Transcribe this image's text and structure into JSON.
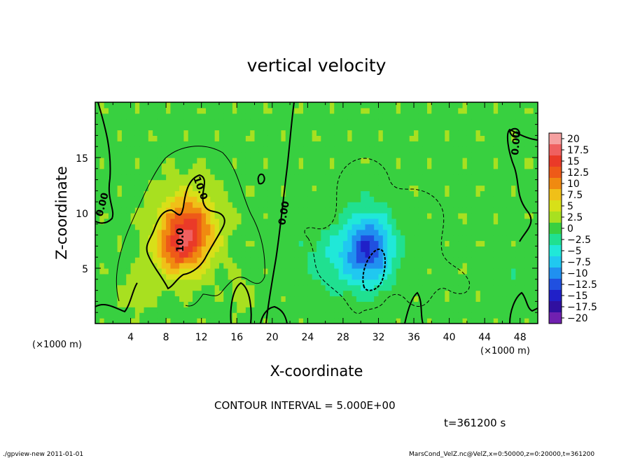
{
  "chart_data": {
    "type": "heatmap",
    "title": "vertical velocity",
    "xlabel": "X-coordinate",
    "ylabel": "Z-coordinate",
    "x_unit_label": "(×1000 m)",
    "y_unit_label": "(×1000 m)",
    "xlim": [
      0,
      50
    ],
    "ylim": [
      0,
      20
    ],
    "x_ticks": [
      4,
      8,
      12,
      16,
      20,
      24,
      28,
      32,
      36,
      40,
      44,
      48
    ],
    "y_ticks": [
      5,
      10,
      15
    ],
    "colorbar": {
      "labels": [
        "20",
        "17.5",
        "15",
        "12.5",
        "10",
        "7.5",
        "5",
        "2.5",
        "0",
        "-2.5",
        "-5",
        "-7.5",
        "-10",
        "-12.5",
        "-15",
        "-17.5",
        "-20"
      ],
      "values": [
        20,
        17.5,
        15,
        12.5,
        10,
        7.5,
        5,
        2.5,
        0,
        -2.5,
        -5,
        -7.5,
        -10,
        -12.5,
        -15,
        -17.5,
        -20
      ],
      "colors": [
        "#f5a0a0",
        "#ef6060",
        "#ea3a28",
        "#ee5a18",
        "#f08a10",
        "#f0c018",
        "#d8e018",
        "#a8e020",
        "#38d040",
        "#20e090",
        "#20e8d8",
        "#20c8f0",
        "#2090f0",
        "#2050e0",
        "#2020c8",
        "#3010a0",
        "#7020b0"
      ]
    },
    "contour_labels": [
      "10.0",
      "10.0",
      "0.00",
      "0.00",
      "0.00"
    ],
    "features": [
      {
        "x": 10.5,
        "z": 8.5,
        "value": 14,
        "sx": 3.0,
        "sz": 3.2
      },
      {
        "x": 9.0,
        "z": 6.5,
        "value": 6,
        "sx": 2.5,
        "sz": 2.2
      },
      {
        "x": 31.0,
        "z": 7.0,
        "value": -11,
        "sx": 2.6,
        "sz": 3.2
      },
      {
        "x": 28.5,
        "z": 6.0,
        "value": -5,
        "sx": 4.5,
        "sz": 3.0
      },
      {
        "x": 5.0,
        "z": 3.0,
        "value": 3,
        "sx": 1.5,
        "sz": 1.5
      },
      {
        "x": 16.5,
        "z": 2.5,
        "value": 3,
        "sx": 1.0,
        "sz": 1.2
      },
      {
        "x": 48.0,
        "z": 4.0,
        "value": -1.5,
        "sx": 2.5,
        "sz": 2.0
      }
    ]
  },
  "contour_interval": "CONTOUR INTERVAL = 5.000E+00",
  "time_label": "t=361200 s",
  "footer": {
    "left": "./gpview-new   2011-01-01",
    "right": "MarsCond_VelZ.nc@VelZ,x=0:50000,z=0:20000,t=361200"
  }
}
